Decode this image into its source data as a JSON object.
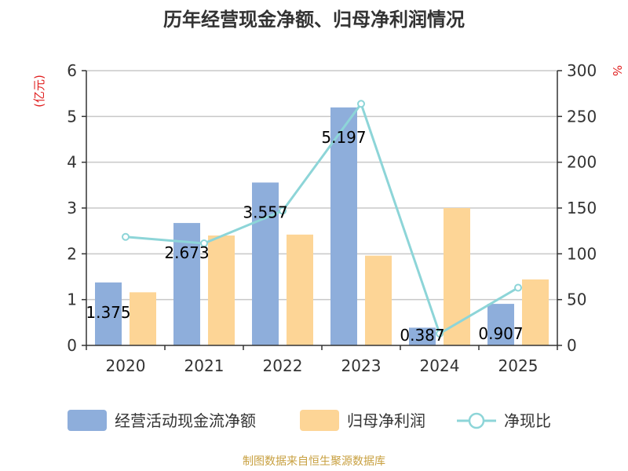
{
  "chart_data": {
    "type": "bar",
    "title": "历年经营现金净额、归母净利润情况",
    "categories": [
      "2020",
      "2021",
      "2022",
      "2023",
      "2024",
      "2025"
    ],
    "y_left": {
      "label": "(亿元)",
      "ylim": [
        0,
        6
      ],
      "ticks": [
        "0",
        "1",
        "2",
        "3",
        "4",
        "5",
        "6"
      ]
    },
    "y_right": {
      "label": "%",
      "ylim": [
        0,
        300
      ],
      "ticks": [
        "0",
        "50",
        "100",
        "150",
        "200",
        "250",
        "300"
      ]
    },
    "series": [
      {
        "name": "经营活动现金流净额",
        "type": "bar",
        "axis": "left",
        "color": "#8eaedb",
        "values": [
          1.375,
          2.673,
          3.557,
          5.197,
          0.387,
          0.907
        ],
        "labels": [
          "1.375",
          "2.673",
          "3.557",
          "5.197",
          "0.387",
          "0.907"
        ]
      },
      {
        "name": "归母净利润",
        "type": "bar",
        "axis": "left",
        "color": "#fdd596",
        "values": [
          1.16,
          2.4,
          2.42,
          1.96,
          3.0,
          1.44
        ]
      },
      {
        "name": "净现比",
        "type": "line",
        "axis": "right",
        "color": "#8dd5d8",
        "values": [
          118.5,
          111.4,
          147.0,
          263.8,
          12.9,
          63.0
        ]
      }
    ],
    "grid": true,
    "legend": "bottom"
  },
  "footer": {
    "source": "制图数据来自恒生聚源数据库"
  }
}
